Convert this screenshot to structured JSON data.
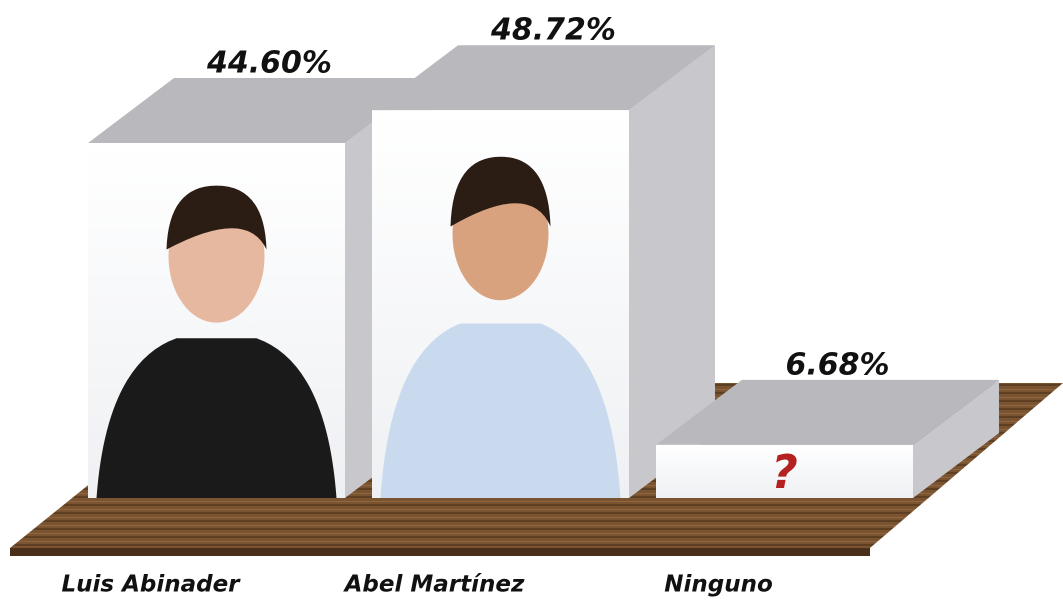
{
  "chart_data": {
    "type": "bar",
    "categories": [
      "Luis Abinader",
      "Abel Martínez",
      "Ninguno"
    ],
    "values": [
      44.6,
      48.72,
      6.68
    ],
    "value_labels": [
      "44.60%",
      "48.72%",
      "6.68%"
    ]
  }
}
